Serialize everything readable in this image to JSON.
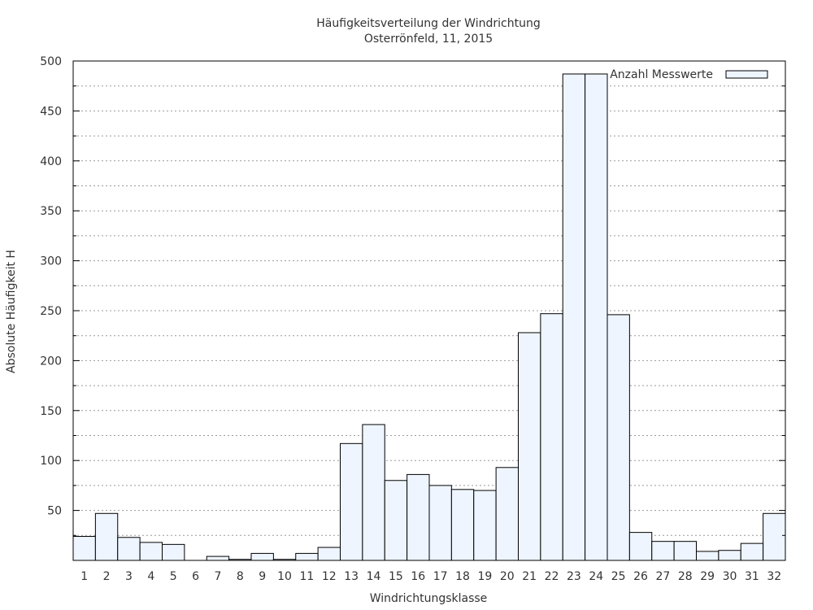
{
  "chart_data": {
    "type": "bar",
    "title": "Häufigkeitsverteilung der Windrichtung",
    "subtitle": "Osterrönfeld, 11, 2015",
    "xlabel": "Windrichtungsklasse",
    "ylabel": "Absolute Häufigkeit H",
    "ylim": [
      0,
      500
    ],
    "yticks": [
      50,
      100,
      150,
      200,
      250,
      300,
      350,
      400,
      450,
      500
    ],
    "grid": true,
    "legend_position": "top-right",
    "categories": [
      "1",
      "2",
      "3",
      "4",
      "5",
      "6",
      "7",
      "8",
      "9",
      "10",
      "11",
      "12",
      "13",
      "14",
      "15",
      "16",
      "17",
      "18",
      "19",
      "20",
      "21",
      "22",
      "23",
      "24",
      "25",
      "26",
      "27",
      "28",
      "29",
      "30",
      "31",
      "32"
    ],
    "series": [
      {
        "name": "Anzahl Messwerte",
        "values": [
          24,
          47,
          23,
          18,
          16,
          0,
          4,
          1,
          7,
          1,
          7,
          13,
          117,
          136,
          80,
          86,
          75,
          71,
          70,
          93,
          228,
          247,
          487,
          487,
          246,
          28,
          19,
          19,
          9,
          10,
          17,
          47
        ]
      }
    ],
    "colors": {
      "bar_fill": "#eef5ff",
      "bar_stroke": "#000000",
      "grid": "#999999"
    }
  }
}
